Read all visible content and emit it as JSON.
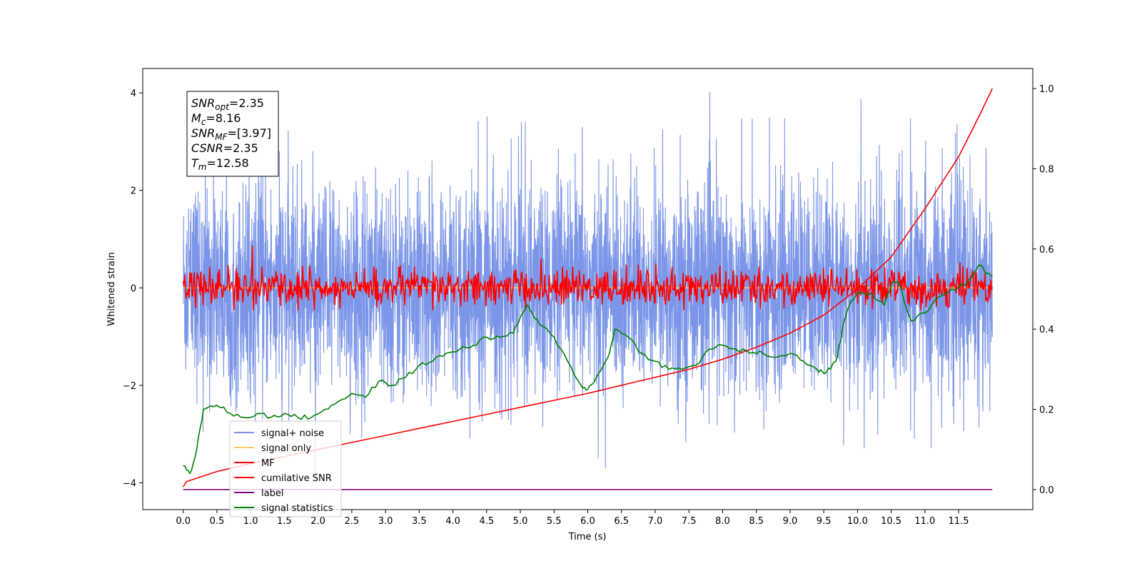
{
  "chart_data": {
    "type": "line",
    "title": "",
    "xlabel": "Time (s)",
    "ylabel_left": "Whitened strain",
    "ylabel_right": "",
    "xlim": [
      -0.6,
      12.6
    ],
    "ylim_left": [
      -4.55,
      4.5
    ],
    "ylim_right": [
      -0.05,
      1.05
    ],
    "x_ticks": [
      "0.0",
      "0.5",
      "1.0",
      "1.5",
      "2.0",
      "2.5",
      "3.0",
      "3.5",
      "4.0",
      "4.5",
      "5.0",
      "5.5",
      "6.0",
      "6.5",
      "7.0",
      "7.5",
      "8.0",
      "8.5",
      "9.0",
      "9.5",
      "10.0",
      "10.5",
      "11.0",
      "11.5"
    ],
    "y_left_ticks": [
      "4",
      "2",
      "0",
      "−2",
      "−4"
    ],
    "y_right_ticks": [
      "1.0",
      "0.8",
      "0.6",
      "0.4",
      "0.2",
      "0.0"
    ],
    "grid": false,
    "legend_position": "lower-left",
    "annotation": [
      {
        "base": "SNR",
        "sub": "opt",
        "value": "=2.35"
      },
      {
        "base": "M",
        "sub": "c",
        "value": "=8.16"
      },
      {
        "base": "SNR",
        "sub": "MF",
        "value": "=[3.97]"
      },
      {
        "base": "CSNR",
        "sub": "",
        "value": "=2.35"
      },
      {
        "base": "T",
        "sub": "m",
        "value": "=12.58"
      }
    ],
    "series": [
      {
        "name": "signal+ noise",
        "color": "#7b96e8",
        "axis": "left",
        "kind": "noise",
        "x_range": [
          0,
          12
        ],
        "y_range": [
          -4.0,
          4.1
        ],
        "sigma": 1.0
      },
      {
        "name": "signal only",
        "color": "#ffcc66",
        "axis": "left",
        "kind": "flat",
        "x_range": [
          0,
          12
        ],
        "y": 0
      },
      {
        "name": "MF",
        "color": "#ff0000",
        "axis": "left",
        "kind": "noise",
        "x_range": [
          0,
          12
        ],
        "y_range": [
          -0.45,
          1.0
        ],
        "sigma": 0.2
      },
      {
        "name": "cumilative SNR",
        "color": "#ff0000",
        "axis": "right",
        "x": [
          0,
          0.05,
          0.5,
          1,
          2,
          3,
          4,
          5,
          6,
          7,
          7.5,
          8,
          8.5,
          9,
          9.5,
          10,
          10.5,
          11,
          11.5,
          11.8,
          12
        ],
        "y": [
          0.007,
          0.02,
          0.045,
          0.065,
          0.1,
          0.135,
          0.17,
          0.205,
          0.24,
          0.28,
          0.3,
          0.325,
          0.355,
          0.39,
          0.435,
          0.5,
          0.58,
          0.7,
          0.83,
          0.93,
          1.0
        ]
      },
      {
        "name": "label",
        "color": "#800080",
        "axis": "right",
        "x": [
          0,
          12
        ],
        "y": [
          0,
          0
        ]
      },
      {
        "name": "signal statistics",
        "color": "#008000",
        "axis": "right",
        "x": [
          0,
          0.1,
          0.2,
          0.3,
          0.5,
          0.7,
          0.9,
          1.1,
          1.3,
          1.5,
          1.7,
          1.9,
          2.1,
          2.3,
          2.5,
          2.7,
          2.9,
          3.1,
          3.3,
          3.5,
          3.7,
          3.9,
          4.1,
          4.3,
          4.5,
          4.7,
          4.9,
          5.0,
          5.1,
          5.2,
          5.3,
          5.5,
          5.7,
          5.9,
          6.0,
          6.1,
          6.3,
          6.4,
          6.6,
          6.8,
          7.0,
          7.2,
          7.4,
          7.6,
          7.8,
          8.0,
          8.2,
          8.4,
          8.6,
          8.8,
          9.0,
          9.2,
          9.4,
          9.5,
          9.6,
          9.7,
          9.8,
          9.9,
          10.0,
          10.2,
          10.4,
          10.5,
          10.6,
          10.8,
          11.0,
          11.2,
          11.4,
          11.6,
          11.8,
          12.0
        ],
        "y": [
          0.06,
          0.04,
          0.1,
          0.2,
          0.21,
          0.19,
          0.18,
          0.19,
          0.18,
          0.19,
          0.18,
          0.18,
          0.2,
          0.22,
          0.24,
          0.23,
          0.27,
          0.26,
          0.28,
          0.31,
          0.32,
          0.34,
          0.35,
          0.36,
          0.38,
          0.38,
          0.39,
          0.43,
          0.46,
          0.43,
          0.41,
          0.38,
          0.32,
          0.26,
          0.25,
          0.27,
          0.33,
          0.4,
          0.38,
          0.34,
          0.32,
          0.3,
          0.3,
          0.31,
          0.35,
          0.36,
          0.35,
          0.34,
          0.34,
          0.33,
          0.34,
          0.32,
          0.3,
          0.29,
          0.3,
          0.33,
          0.42,
          0.47,
          0.49,
          0.49,
          0.46,
          0.51,
          0.52,
          0.42,
          0.44,
          0.48,
          0.5,
          0.51,
          0.56,
          0.53
        ]
      }
    ]
  }
}
